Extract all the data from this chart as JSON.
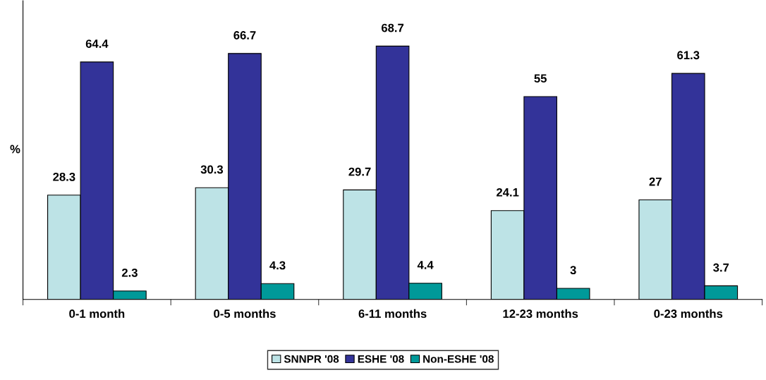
{
  "chart_data": {
    "type": "bar",
    "ylabel": "%",
    "categories": [
      "0-1 month",
      "0-5 months",
      "6-11 months",
      "12-23 months",
      "0-23 months"
    ],
    "series": [
      {
        "name": "SNNPR '08",
        "color": "#bde3e6",
        "values": [
          28.3,
          30.3,
          29.7,
          24.1,
          27
        ]
      },
      {
        "name": "ESHE '08",
        "color": "#333399",
        "values": [
          64.4,
          66.7,
          68.7,
          55,
          61.3
        ]
      },
      {
        "name": "Non-ESHE '08",
        "color": "#009999",
        "values": [
          2.3,
          4.3,
          4.4,
          3,
          3.7
        ]
      }
    ],
    "ylim": [
      0,
      81
    ],
    "data_labels": true,
    "legend": "bottom",
    "grid": false,
    "tick_labels": "x"
  }
}
